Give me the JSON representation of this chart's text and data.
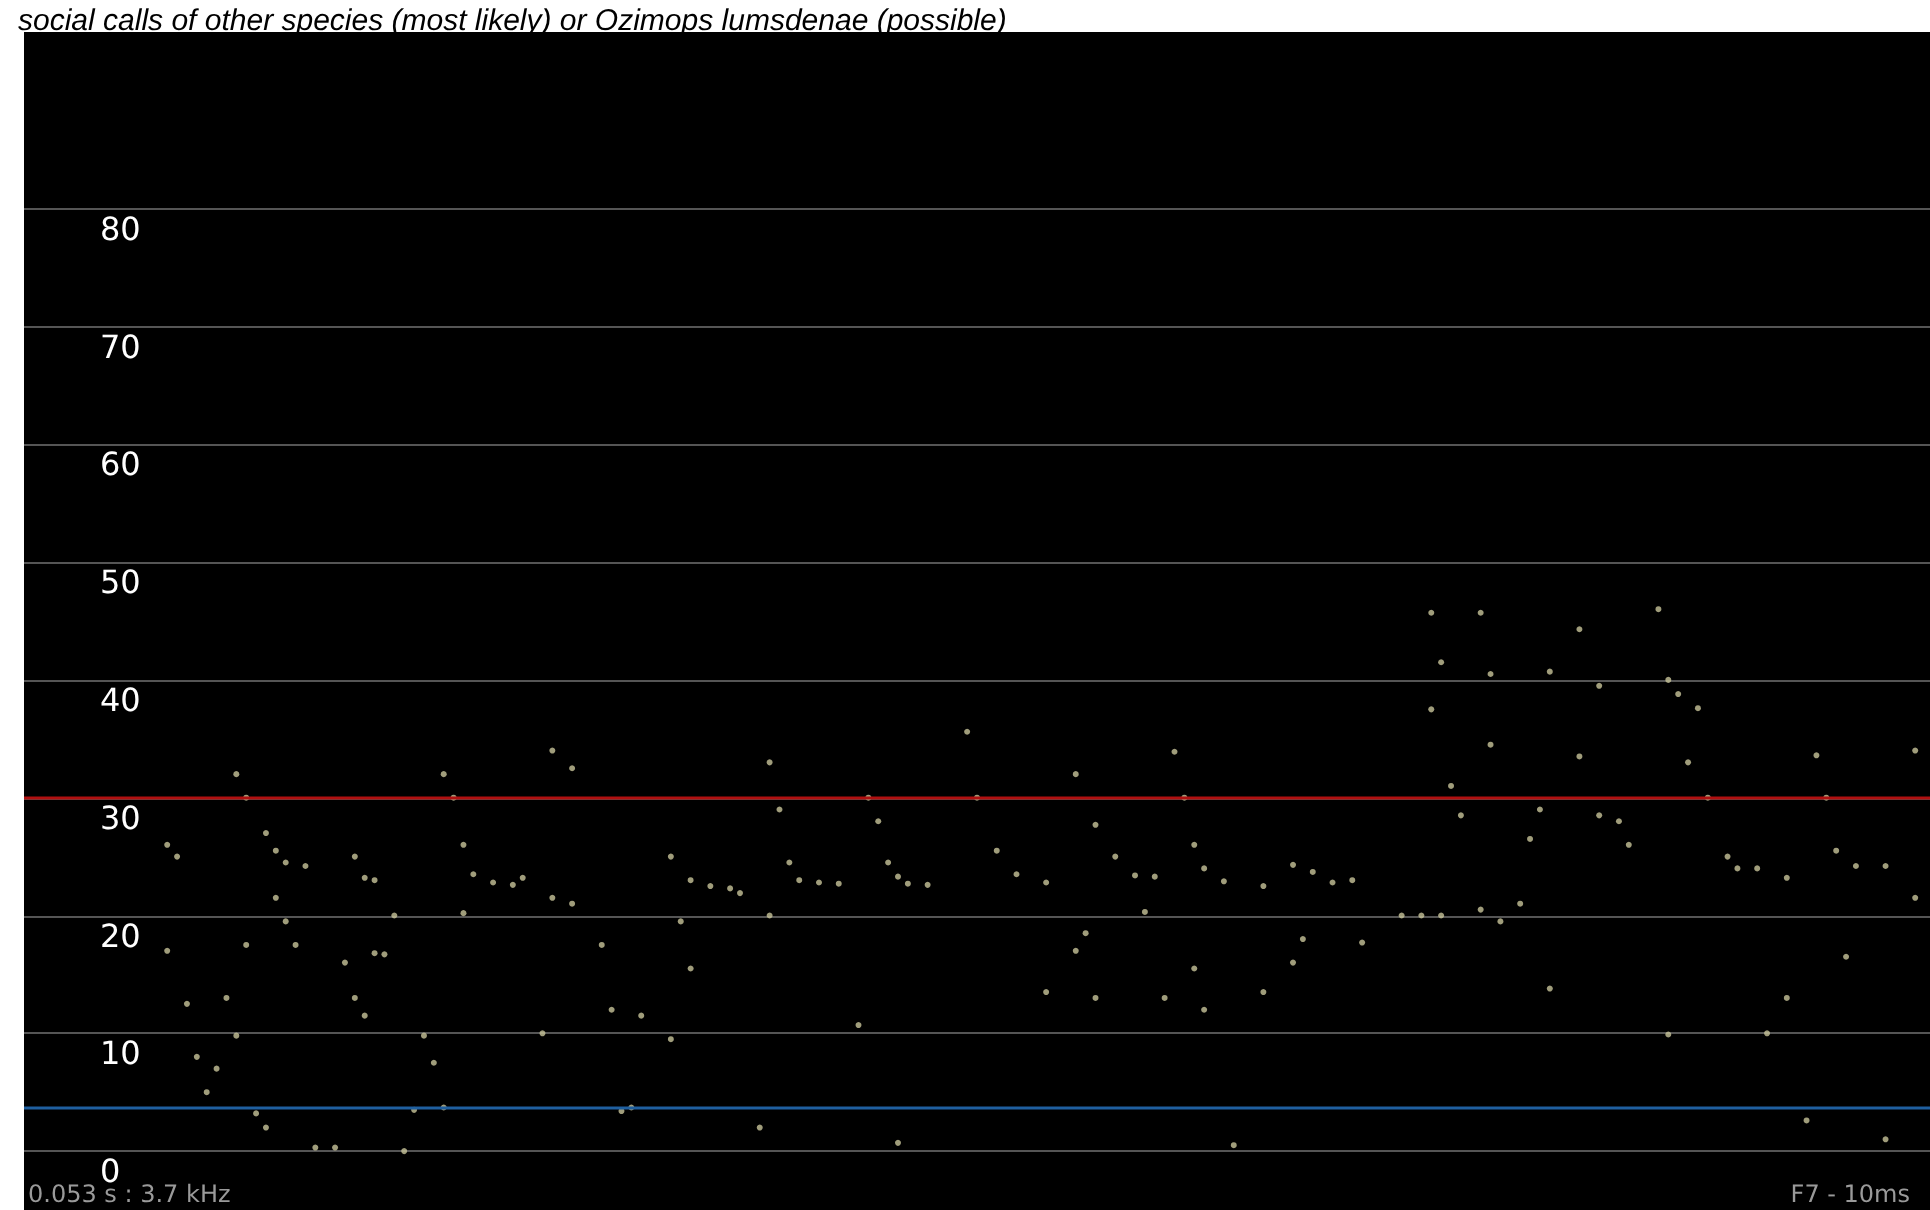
{
  "chart_data": {
    "type": "scatter",
    "title": "social calls of other species (most likely) or Ozimops lumsdenae (possible)",
    "categories": [
      null,
      null,
      null,
      null,
      null,
      null,
      null,
      null,
      null,
      null,
      null,
      null,
      null,
      null,
      null,
      null,
      null,
      null,
      null,
      null,
      null,
      null,
      null,
      null,
      null,
      null,
      null,
      null,
      null,
      null,
      null,
      null,
      null,
      null,
      null,
      null,
      null,
      null,
      null,
      null,
      null,
      null,
      null,
      null,
      null,
      null,
      null,
      null,
      null,
      null,
      null,
      null,
      null,
      null,
      null,
      null,
      null,
      null,
      null,
      null,
      null,
      null,
      null,
      null,
      null,
      null,
      null,
      null,
      null,
      null,
      null,
      null,
      null,
      null,
      null,
      null,
      null,
      null,
      null,
      null,
      null,
      null,
      null,
      null,
      null,
      null,
      null,
      null,
      null,
      null,
      null,
      null,
      null,
      null,
      null,
      null,
      null,
      null,
      null,
      null,
      null,
      null,
      null,
      null,
      null,
      null,
      null,
      null,
      null,
      null,
      null,
      null,
      null,
      null,
      null,
      null,
      null,
      null,
      null,
      null,
      null,
      null,
      null,
      null,
      null,
      null,
      null,
      null,
      null,
      null,
      null,
      null,
      null,
      null,
      null,
      null,
      null,
      null,
      null,
      null,
      null,
      null,
      null,
      null,
      null,
      null,
      null,
      null,
      null,
      null,
      null,
      null,
      null,
      null,
      null,
      null,
      null,
      null,
      null,
      null,
      null,
      null,
      null,
      null,
      null,
      null,
      null,
      null,
      null,
      null,
      null,
      null,
      null,
      null,
      null,
      null,
      null,
      null,
      null,
      null,
      null,
      null,
      null,
      null,
      null,
      null,
      null,
      null,
      null,
      null,
      null,
      null,
      null
    ],
    "series": [
      {
        "color": "#c8c49a",
        "values": [
          null,
          null,
          null,
          null,
          null,
          null,
          null,
          null,
          null,
          null,
          null,
          null,
          null,
          null,
          26,
          25,
          null,
          null,
          null,
          null,
          null,
          32,
          30,
          null,
          27,
          25.5,
          24.5,
          null,
          24.2,
          null,
          null,
          null,
          null,
          25,
          23.2,
          23,
          null,
          null,
          null,
          null,
          null,
          null,
          32,
          30,
          26,
          23.5,
          null,
          22.8,
          null,
          22.6,
          23.2,
          null,
          null,
          34,
          null,
          32.5,
          null,
          null,
          null,
          null,
          null,
          null,
          null,
          null,
          null,
          25,
          null,
          23,
          null,
          22.5,
          null,
          22.3,
          21.9,
          null,
          null,
          33,
          29,
          24.5,
          23,
          null,
          22.8,
          null,
          22.7,
          null,
          null,
          30,
          28,
          24.5,
          23.3,
          22.7,
          null,
          22.6,
          null,
          null,
          null,
          35.6,
          30,
          null,
          25.5,
          null,
          23.5,
          null,
          null,
          22.8,
          null,
          null,
          32,
          null,
          27.7,
          null,
          25,
          null,
          23.4,
          null,
          23.3,
          null,
          33.9,
          30,
          26,
          24,
          null,
          22.9,
          null,
          null,
          null,
          22.5,
          null,
          null,
          24.3,
          null,
          23.7,
          null,
          22.8,
          null,
          23,
          null,
          null,
          null,
          null,
          null,
          null,
          null,
          45.7,
          41.5,
          null,
          null,
          null,
          45.7,
          40.5,
          null,
          null,
          null,
          null,
          null,
          40.7,
          null,
          null,
          44.3,
          null,
          39.5,
          null,
          null,
          null,
          null,
          null,
          46,
          40,
          38.8,
          null,
          37.6,
          30,
          null,
          25,
          24,
          null,
          24,
          null,
          null,
          23.2,
          null,
          null,
          33.6,
          30,
          25.5,
          null,
          24.2,
          null,
          null,
          24.2,
          null,
          null,
          34,
          null
        ]
      },
      {
        "color": "#c8c49a",
        "values": [
          null,
          null,
          null,
          null,
          null,
          null,
          null,
          null,
          null,
          null,
          null,
          null,
          null,
          null,
          17,
          null,
          12.5,
          8,
          5,
          7,
          13,
          9.8,
          17.5,
          3.2,
          2,
          21.5,
          19.5,
          17.5,
          null,
          0.3,
          null,
          0.3,
          16,
          13,
          11.5,
          16.8,
          16.7,
          20,
          0,
          3.5,
          9.8,
          7.5,
          3.7,
          null,
          20.2,
          null,
          null,
          null,
          null,
          null,
          null,
          null,
          10,
          21.5,
          null,
          21,
          null,
          null,
          17.5,
          12,
          3.4,
          3.7,
          11.5,
          null,
          null,
          9.5,
          19.5,
          15.5,
          null,
          null,
          null,
          null,
          null,
          null,
          2,
          20,
          null,
          null,
          null,
          null,
          null,
          null,
          null,
          null,
          10.7,
          null,
          null,
          null,
          0.7,
          null,
          null,
          null,
          null,
          null,
          null,
          null,
          null,
          null,
          null,
          null,
          null,
          null,
          null,
          13.5,
          null,
          null,
          17,
          18.5,
          13,
          null,
          null,
          null,
          null,
          20.3,
          null,
          13,
          null,
          null,
          15.5,
          12,
          null,
          null,
          0.5,
          null,
          null,
          13.5,
          null,
          null,
          16,
          18,
          null,
          null,
          null,
          null,
          null,
          17.7,
          null,
          null,
          null,
          20,
          null,
          20,
          37.5,
          20,
          31,
          28.5,
          null,
          20.5,
          34.5,
          19.5,
          null,
          21,
          26.5,
          29,
          13.8,
          null,
          null,
          33.5,
          null,
          28.5,
          null,
          28,
          26,
          null,
          null,
          null,
          9.9,
          null,
          33,
          null,
          null,
          null,
          null,
          null,
          null,
          null,
          10,
          null,
          13,
          null,
          2.6,
          null,
          null,
          null,
          16.5,
          null,
          null,
          null,
          1,
          null,
          null,
          21.5,
          null
        ]
      }
    ],
    "ylim": [
      -5,
      95
    ],
    "yticks": [
      0,
      10,
      20,
      30,
      40,
      50,
      60,
      70,
      80
    ],
    "grid": "y",
    "marker": "circle",
    "tick_labels": "y",
    "ref_lines": [
      {
        "axis": "y",
        "value": 30,
        "color": "#b01010"
      },
      {
        "axis": "y",
        "value": 3.7,
        "color": "#1f5f9f"
      }
    ],
    "annotations": [
      "0.053 s : 3.7 kHz",
      "F7 - 10ms"
    ]
  }
}
